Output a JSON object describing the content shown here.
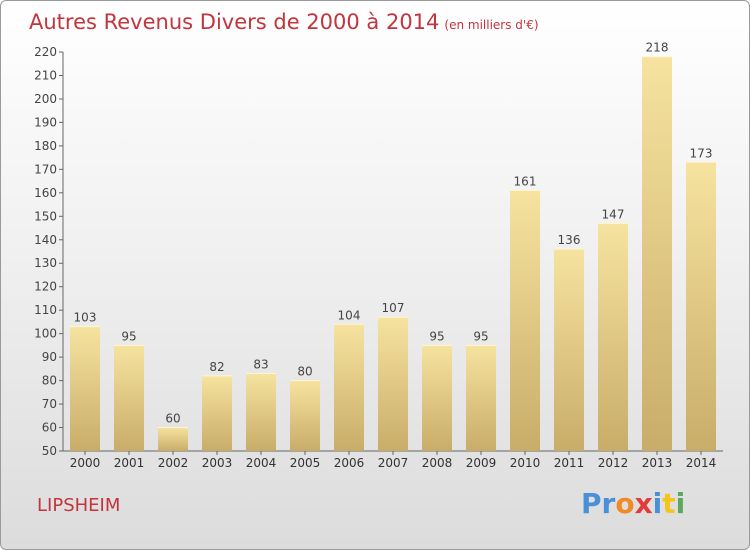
{
  "title": "Autres Revenus Divers de 2000 à 2014",
  "title_unit": "(en milliers d'€)",
  "region": "LIPSHEIM",
  "logo_text": "Proxiti",
  "colors": {
    "title": "#c3343c",
    "bar_top": "#f6e3a0",
    "bar_bottom": "#c8ad68",
    "logo": [
      "#4a90d9",
      "#4a90d9",
      "#f08a24",
      "#e23b3b",
      "#4a90d9",
      "#f5c518",
      "#5aa85a"
    ]
  },
  "chart_data": {
    "type": "bar",
    "categories": [
      "2000",
      "2001",
      "2002",
      "2003",
      "2004",
      "2005",
      "2006",
      "2007",
      "2008",
      "2009",
      "2010",
      "2011",
      "2012",
      "2013",
      "2014"
    ],
    "values": [
      103,
      95,
      60,
      82,
      83,
      80,
      104,
      107,
      95,
      95,
      161,
      136,
      147,
      218,
      173
    ],
    "ylim": [
      50,
      220
    ],
    "yticks": [
      50,
      60,
      70,
      80,
      90,
      100,
      110,
      120,
      130,
      140,
      150,
      160,
      170,
      180,
      190,
      200,
      210,
      220
    ],
    "data_labels": true,
    "grid": false,
    "legend": "none"
  }
}
